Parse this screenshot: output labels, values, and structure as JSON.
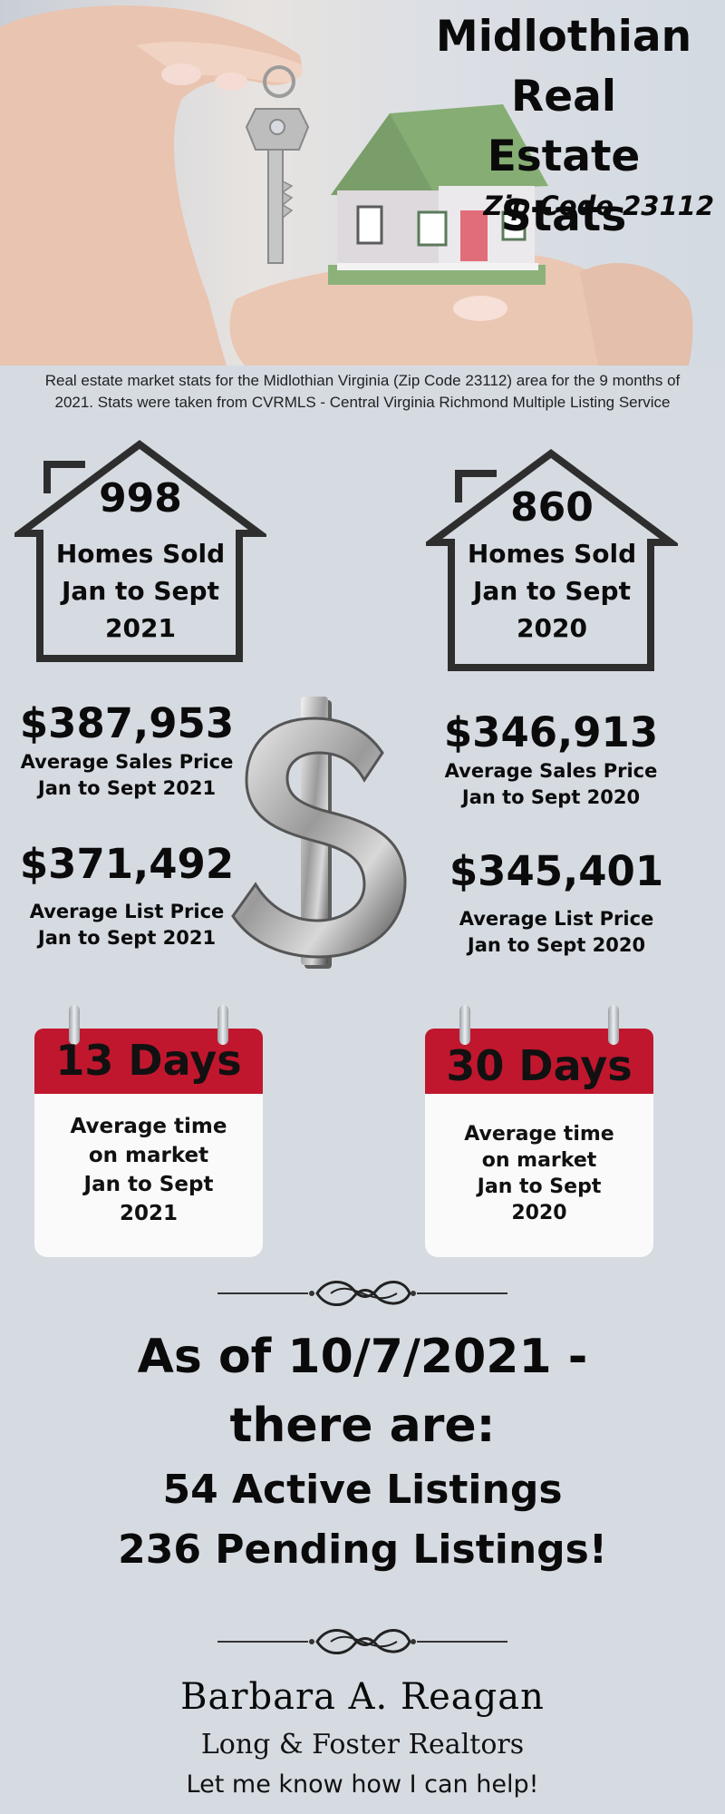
{
  "hero": {
    "title_lines": [
      "Midlothian",
      "Real Estate",
      "Stats"
    ],
    "zip": "Zip Code 23112"
  },
  "intro": {
    "line1": "Real estate market stats for the Midlothian Virginia (Zip Code 23112) area for the 9 months of",
    "line2": "2021.  Stats were taken from CVRMLS - Central Virginia Richmond Multiple Listing Service"
  },
  "homes_sold": [
    {
      "number": "998",
      "line1": "Homes Sold",
      "line2": "Jan to Sept",
      "line3": "2021"
    },
    {
      "number": "860",
      "line1": "Homes Sold",
      "line2": "Jan to Sept",
      "line3": "2020"
    }
  ],
  "prices": {
    "sales_2021": {
      "value": "$387,953",
      "label1": "Average Sales Price",
      "label2": "Jan to Sept 2021"
    },
    "list_2021": {
      "value": "$371,492",
      "label1": "Average List Price",
      "label2": "Jan to Sept 2021"
    },
    "sales_2020": {
      "value": "$346,913",
      "label1": "Average Sales Price",
      "label2": "Jan to Sept 2020"
    },
    "list_2020": {
      "value": "$345,401",
      "label1": "Average List Price",
      "label2": "Jan to Sept 2020"
    }
  },
  "days_on_market": [
    {
      "days": "13 Days",
      "line1": "Average time",
      "line2": "on market",
      "line3": "Jan to Sept",
      "line4": "2021"
    },
    {
      "days": "30 Days",
      "line1": "Average time",
      "line2": "on market",
      "line3": "Jan to Sept",
      "line4": "2020"
    }
  ],
  "listings": {
    "line1": "As of 10/7/2021 -",
    "line2": "there are:",
    "line3": "54 Active Listings",
    "line4": "236 Pending Listings!"
  },
  "signature": {
    "name": "Barbara A. Reagan",
    "company": "Long & Foster Realtors",
    "cta": "Let me know how I can help!"
  },
  "colors": {
    "background": "#d6dbe2",
    "calendar_red": "#c0172e",
    "roof_green": "#7a9e6a"
  }
}
